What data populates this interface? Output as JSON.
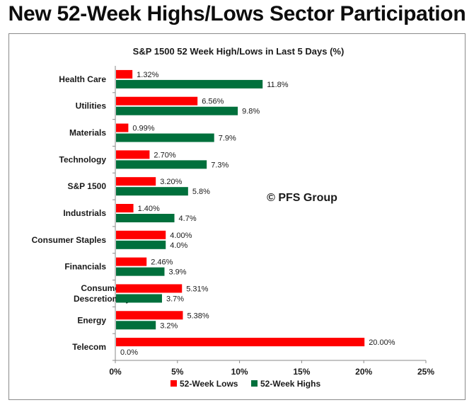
{
  "page_title": "New 52-Week Highs/Lows Sector Participation",
  "watermark": "© PFS Group",
  "colors": {
    "lows": "#ff0000",
    "highs": "#00703c",
    "text": "#1a1a1a"
  },
  "chart_data": {
    "type": "bar",
    "orientation": "horizontal",
    "title": "S&P 1500 52 Week High/Lows in Last 5 Days (%)",
    "categories": [
      [
        "Health Care"
      ],
      [
        "Utilities"
      ],
      [
        "Materials"
      ],
      [
        "Technology"
      ],
      [
        "S&P 1500"
      ],
      [
        "Industrials"
      ],
      [
        "Consumer Staples"
      ],
      [
        "Financials"
      ],
      [
        "Consumer",
        "Descretionary"
      ],
      [
        "Energy"
      ],
      [
        "Telecom"
      ]
    ],
    "series": [
      {
        "name": "52-Week Lows",
        "color": "#ff0000",
        "values": [
          1.32,
          6.56,
          0.99,
          2.7,
          3.2,
          1.4,
          4.0,
          2.46,
          5.31,
          5.38,
          20.0
        ],
        "labels": [
          "1.32%",
          "6.56%",
          "0.99%",
          "2.70%",
          "3.20%",
          "1.40%",
          "4.00%",
          "2.46%",
          "5.31%",
          "5.38%",
          "20.00%"
        ]
      },
      {
        "name": "52-Week Highs",
        "color": "#00703c",
        "values": [
          11.8,
          9.8,
          7.9,
          7.3,
          5.8,
          4.7,
          4.0,
          3.9,
          3.7,
          3.2,
          0.0
        ],
        "labels": [
          "11.8%",
          "9.8%",
          "7.9%",
          "7.3%",
          "5.8%",
          "4.7%",
          "4.0%",
          "3.9%",
          "3.7%",
          "3.2%",
          "0.0%"
        ]
      }
    ],
    "xlim": [
      0,
      25
    ],
    "xticks": [
      0,
      5,
      10,
      15,
      20,
      25
    ],
    "xtick_labels": [
      "0%",
      "5%",
      "10%",
      "15%",
      "20%",
      "25%"
    ],
    "grid": false,
    "legend_position": "bottom"
  }
}
